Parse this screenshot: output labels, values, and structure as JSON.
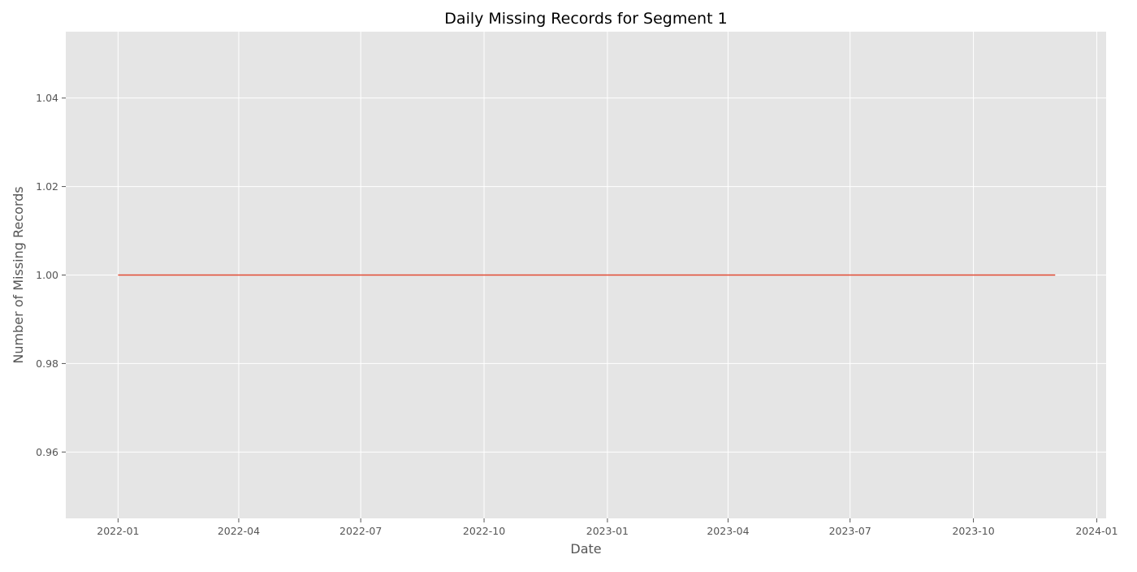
{
  "chart_data": {
    "type": "line",
    "title": "Daily Missing Records for Segment 1",
    "xlabel": "Date",
    "ylabel": "Number of Missing Records",
    "x_type": "date",
    "xlim": [
      "2021-11-23",
      "2024-01-08"
    ],
    "ylim": [
      0.945,
      1.055
    ],
    "x_ticks": [
      {
        "date": "2022-01-01",
        "label": "2022-01"
      },
      {
        "date": "2022-04-01",
        "label": "2022-04"
      },
      {
        "date": "2022-07-01",
        "label": "2022-07"
      },
      {
        "date": "2022-10-01",
        "label": "2022-10"
      },
      {
        "date": "2023-01-01",
        "label": "2023-01"
      },
      {
        "date": "2023-04-01",
        "label": "2023-04"
      },
      {
        "date": "2023-07-01",
        "label": "2023-07"
      },
      {
        "date": "2023-10-01",
        "label": "2023-10"
      },
      {
        "date": "2024-01-01",
        "label": "2024-01"
      }
    ],
    "y_ticks": [
      {
        "value": 0.96,
        "label": "0.96"
      },
      {
        "value": 0.98,
        "label": "0.98"
      },
      {
        "value": 1.0,
        "label": "1.00"
      },
      {
        "value": 1.02,
        "label": "1.02"
      },
      {
        "value": 1.04,
        "label": "1.04"
      }
    ],
    "grid": true,
    "series": [
      {
        "color": "#E24A33",
        "x": [
          "2022-01-01",
          "2023-12-01"
        ],
        "y": [
          1,
          1
        ]
      }
    ]
  },
  "colors": {
    "plot_background": "#E5E5E5",
    "grid": "#FFFFFF",
    "tick_text": "#555555",
    "label_text": "#555555",
    "title_text": "#000000"
  }
}
